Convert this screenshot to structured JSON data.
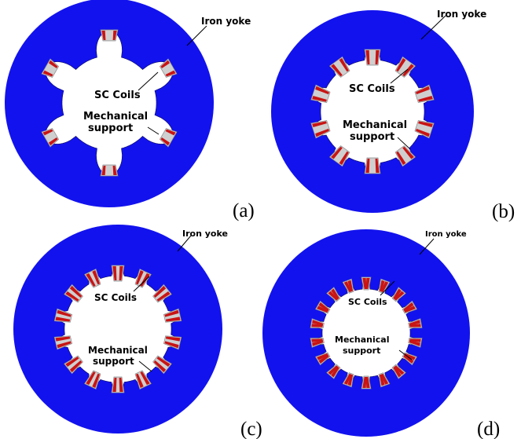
{
  "colors": {
    "yoke": "#1212ee",
    "coil": "#c81414",
    "support": "#cfcfcf",
    "support_stroke": "#8a8a8a",
    "bore": "#ffffff",
    "text": "#000000"
  },
  "panels": [
    {
      "id": "a",
      "caption": "(a)",
      "yoke_label": "Iron yoke",
      "coils_label": "SC Coils",
      "support_label_line1": "Mechanical",
      "support_label_line2": "support",
      "pole_count": 6
    },
    {
      "id": "b",
      "caption": "(b)",
      "yoke_label": "Iron yoke",
      "coils_label": "SC Coils",
      "support_label_line1": "Mechanical",
      "support_label_line2": "support",
      "pole_count": 10
    },
    {
      "id": "c",
      "caption": "(c)",
      "yoke_label": "Iron yoke",
      "coils_label": "SC Coils",
      "support_label_line1": "Mechanical",
      "support_label_line2": "support",
      "pole_count": 14
    },
    {
      "id": "d",
      "caption": "(d)",
      "yoke_label": "Iron yoke",
      "coils_label": "SC Coils",
      "support_label_line1": "Mechanical",
      "support_label_line2": "support",
      "pole_count": 18
    }
  ]
}
